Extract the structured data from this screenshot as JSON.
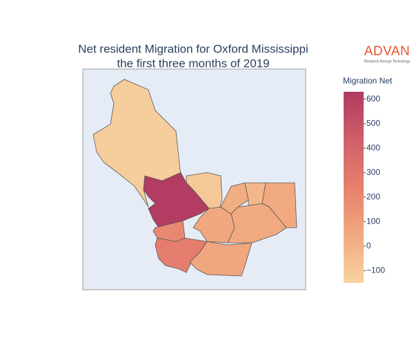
{
  "chart_data": {
    "type": "choropleth",
    "title": [
      "Net resident Migration for Oxford Mississippi",
      "the first three months of 2019"
    ],
    "logo": {
      "name": "ADVAN",
      "tagline": "Research through Technology"
    },
    "colorbar_title": "Migration Net",
    "values": [
      -120,
      620,
      -100,
      200,
      260,
      60,
      50,
      20,
      -20,
      40,
      40
    ],
    "zlim": [
      -150,
      630
    ],
    "colorbar_ticks": [
      {
        "value": -100,
        "label": "−100"
      },
      0,
      100,
      200,
      300,
      400,
      500,
      600
    ],
    "colorscale": [
      "#f7d3a1",
      "#f1a97f",
      "#e6806d",
      "#cf5f69",
      "#b03a62"
    ],
    "background": "#e5ecf6"
  }
}
